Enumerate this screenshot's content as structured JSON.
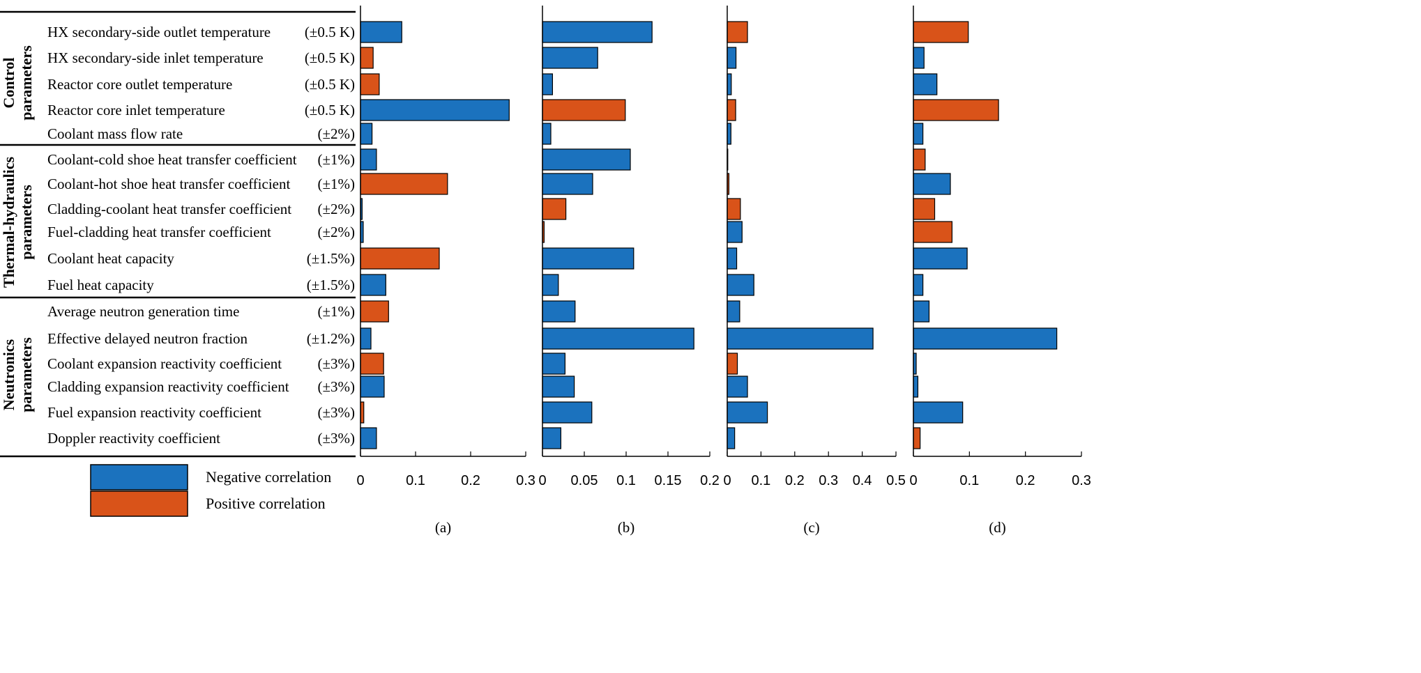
{
  "colors": {
    "negative": "#1b72be",
    "positive": "#d95319",
    "stroke": "#000000"
  },
  "groups": [
    {
      "label_lines": [
        "Control",
        "parameters"
      ],
      "start": 0,
      "end": 4
    },
    {
      "label_lines": [
        "Thermal-hydraulics",
        "parameters"
      ],
      "start": 5,
      "end": 10
    },
    {
      "label_lines": [
        "Neutronics",
        "parameters"
      ],
      "start": 11,
      "end": 16
    }
  ],
  "parameters": [
    {
      "name": "HX secondary-side outlet temperature",
      "range": "(±0.5 K)"
    },
    {
      "name": "HX secondary-side inlet temperature",
      "range": "(±0.5 K)"
    },
    {
      "name": "Reactor core outlet temperature",
      "range": "(±0.5 K)"
    },
    {
      "name": "Reactor core inlet temperature",
      "range": "(±0.5 K)"
    },
    {
      "name": "Coolant mass flow rate",
      "range": "(±2%)"
    },
    {
      "name": "Coolant-cold shoe heat transfer coefficient",
      "range": "(±1%)"
    },
    {
      "name": "Coolant-hot shoe heat transfer coefficient",
      "range": "(±1%)"
    },
    {
      "name": "Cladding-coolant heat transfer coefficient",
      "range": "(±2%)"
    },
    {
      "name": "Fuel-cladding heat transfer coefficient",
      "range": "(±2%)"
    },
    {
      "name": "Coolant heat capacity",
      "range": "(±1.5%)"
    },
    {
      "name": "Fuel heat capacity",
      "range": "(±1.5%)"
    },
    {
      "name": "Average neutron generation time",
      "range": "(±1%)"
    },
    {
      "name": "Effective delayed neutron fraction",
      "range": "(±1.2%)"
    },
    {
      "name": "Coolant expansion reactivity coefficient",
      "range": "(±3%)"
    },
    {
      "name": "Cladding expansion reactivity coefficient",
      "range": "(±3%)"
    },
    {
      "name": "Fuel expansion reactivity coefficient",
      "range": "(±3%)"
    },
    {
      "name": "Doppler reactivity coefficient",
      "range": "(±3%)"
    }
  ],
  "legend": [
    {
      "label": "Negative correlation",
      "sign": "negative"
    },
    {
      "label": "Positive correlation",
      "sign": "positive"
    }
  ],
  "chart_data": [
    {
      "type": "bar",
      "orientation": "horizontal",
      "panel_label": "(a)",
      "xlim": [
        0,
        0.3
      ],
      "xticks": [
        0,
        0.1,
        0.2,
        0.3
      ],
      "xtick_labels": [
        "0",
        "0.1",
        "0.2",
        "0.3"
      ],
      "values": [
        0.075,
        0.023,
        0.034,
        0.27,
        0.021,
        0.029,
        0.158,
        0.003,
        0.005,
        0.143,
        0.046,
        0.051,
        0.019,
        0.042,
        0.043,
        0.006,
        0.029
      ],
      "signs": [
        "neg",
        "pos",
        "pos",
        "neg",
        "neg",
        "neg",
        "pos",
        "neg",
        "neg",
        "pos",
        "neg",
        "pos",
        "neg",
        "pos",
        "neg",
        "pos",
        "neg"
      ]
    },
    {
      "type": "bar",
      "orientation": "horizontal",
      "panel_label": "(b)",
      "xlim": [
        0,
        0.2
      ],
      "xticks": [
        0,
        0.05,
        0.1,
        0.15,
        0.2
      ],
      "xtick_labels": [
        "0",
        "0.05",
        "0.1",
        "0.15",
        "0.2"
      ],
      "values": [
        0.131,
        0.066,
        0.012,
        0.099,
        0.01,
        0.105,
        0.06,
        0.028,
        0.002,
        0.109,
        0.019,
        0.039,
        0.181,
        0.027,
        0.038,
        0.059,
        0.022
      ],
      "signs": [
        "neg",
        "neg",
        "neg",
        "pos",
        "neg",
        "neg",
        "neg",
        "pos",
        "pos",
        "neg",
        "neg",
        "neg",
        "neg",
        "neg",
        "neg",
        "neg",
        "neg"
      ]
    },
    {
      "type": "bar",
      "orientation": "horizontal",
      "panel_label": "(c)",
      "xlim": [
        0,
        0.5
      ],
      "xticks": [
        0,
        0.1,
        0.2,
        0.3,
        0.4,
        0.5
      ],
      "xtick_labels": [
        "0",
        "0.1",
        "0.2",
        "0.3",
        "0.4",
        "0.5"
      ],
      "values": [
        0.06,
        0.026,
        0.012,
        0.025,
        0.011,
        0.001,
        0.005,
        0.039,
        0.044,
        0.028,
        0.079,
        0.037,
        0.432,
        0.03,
        0.06,
        0.119,
        0.022
      ],
      "signs": [
        "pos",
        "neg",
        "neg",
        "pos",
        "neg",
        "neg",
        "pos",
        "pos",
        "neg",
        "neg",
        "neg",
        "neg",
        "neg",
        "pos",
        "neg",
        "neg",
        "neg"
      ]
    },
    {
      "type": "bar",
      "orientation": "horizontal",
      "panel_label": "(d)",
      "xlim": [
        0,
        0.3
      ],
      "xticks": [
        0,
        0.1,
        0.2,
        0.3
      ],
      "xtick_labels": [
        "0",
        "0.1",
        "0.2",
        "0.3"
      ],
      "values": [
        0.098,
        0.019,
        0.042,
        0.152,
        0.017,
        0.021,
        0.066,
        0.038,
        0.069,
        0.096,
        0.017,
        0.028,
        0.256,
        0.005,
        0.008,
        0.088,
        0.012
      ],
      "signs": [
        "pos",
        "neg",
        "neg",
        "pos",
        "neg",
        "pos",
        "neg",
        "pos",
        "pos",
        "neg",
        "neg",
        "neg",
        "neg",
        "neg",
        "neg",
        "neg",
        "pos"
      ]
    }
  ]
}
